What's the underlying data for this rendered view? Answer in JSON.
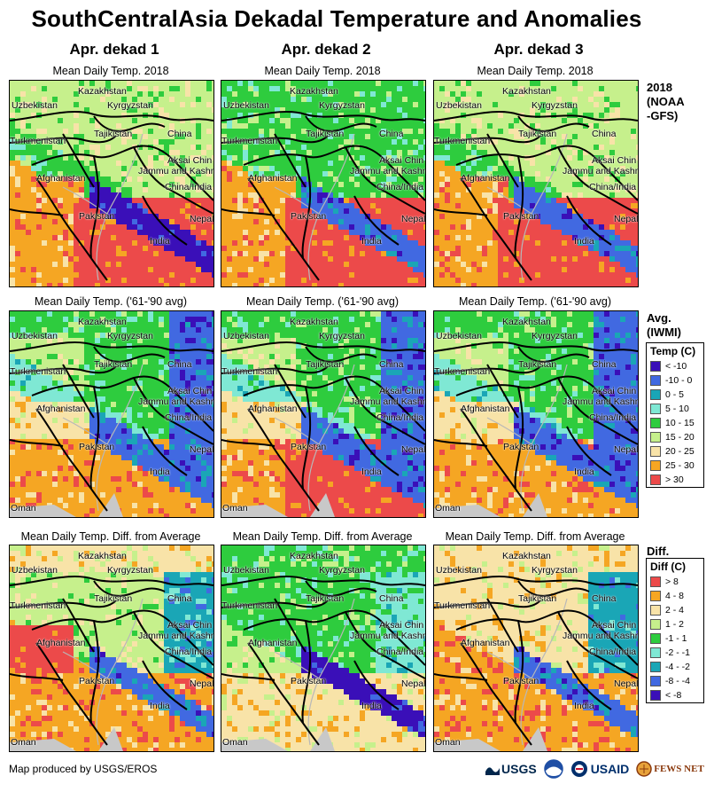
{
  "title": "SouthCentralAsia Dekadal Temperature and Anomalies",
  "columns": [
    "Apr. dekad 1",
    "Apr. dekad 2",
    "Apr. dekad 3"
  ],
  "row_subtitles": {
    "y2018": "Mean Daily Temp. 2018",
    "avg": "Mean Daily Temp. ('61-'90 avg)",
    "diff": "Mean Daily Temp. Diff. from Average"
  },
  "side_labels": {
    "y2018": "2018 (NOAA -GFS)",
    "y2018_lines": [
      "2018",
      "(NOAA",
      "-GFS)"
    ],
    "avg_lines": [
      "Avg.",
      "(IWMI)"
    ],
    "diff_lines": [
      "Diff."
    ]
  },
  "map_labels": {
    "kazakhstan": "Kazakhstan",
    "uzbekistan": "Uzbekistan",
    "kyrgyzstan": "Kyrgyzstan",
    "turkmenistan": "Turkmenistan",
    "tajikistan": "Tajikistan",
    "china": "China",
    "aksai_chin": "Aksai Chin",
    "jammu_kashmir": "Jammu and Kashmir",
    "china_india": "China/India",
    "afghanistan": "Afghanistan",
    "pakistan": "Pakistan",
    "nepal": "Nepal",
    "india": "India",
    "oman": "Oman"
  },
  "temp_legend": {
    "title": "Temp (C)",
    "items": [
      {
        "label": "< -10",
        "color": "#3a0fb8"
      },
      {
        "label": "-10 - 0",
        "color": "#4169e1"
      },
      {
        "label": "0 - 5",
        "color": "#1aa6b6"
      },
      {
        "label": "5 - 10",
        "color": "#7fe8d4"
      },
      {
        "label": "10 - 15",
        "color": "#2ecc3e"
      },
      {
        "label": "15 - 20",
        "color": "#c6f08c"
      },
      {
        "label": "20 - 25",
        "color": "#f8e3a8"
      },
      {
        "label": "25 - 30",
        "color": "#f5a623"
      },
      {
        "label": "> 30",
        "color": "#ec4a4a"
      }
    ]
  },
  "diff_legend": {
    "title": "Diff (C)",
    "items": [
      {
        "label": "> 8",
        "color": "#ec4a4a"
      },
      {
        "label": "4 - 8",
        "color": "#f5a623"
      },
      {
        "label": "2 - 4",
        "color": "#f8e3a8"
      },
      {
        "label": "1 - 2",
        "color": "#c6f08c"
      },
      {
        "label": "-1 - 1",
        "color": "#2ecc3e"
      },
      {
        "label": "-2 - -1",
        "color": "#7fe8d4"
      },
      {
        "label": "-4 - -2",
        "color": "#1aa6b6"
      },
      {
        "label": "-8 - -4",
        "color": "#4169e1"
      },
      {
        "label": "< -8",
        "color": "#3a0fb8"
      }
    ]
  },
  "footer": "Map produced by USGS/EROS",
  "logos": {
    "usgs": "USGS",
    "usaid": "USAID",
    "fewsnet": "FEWS NET"
  }
}
